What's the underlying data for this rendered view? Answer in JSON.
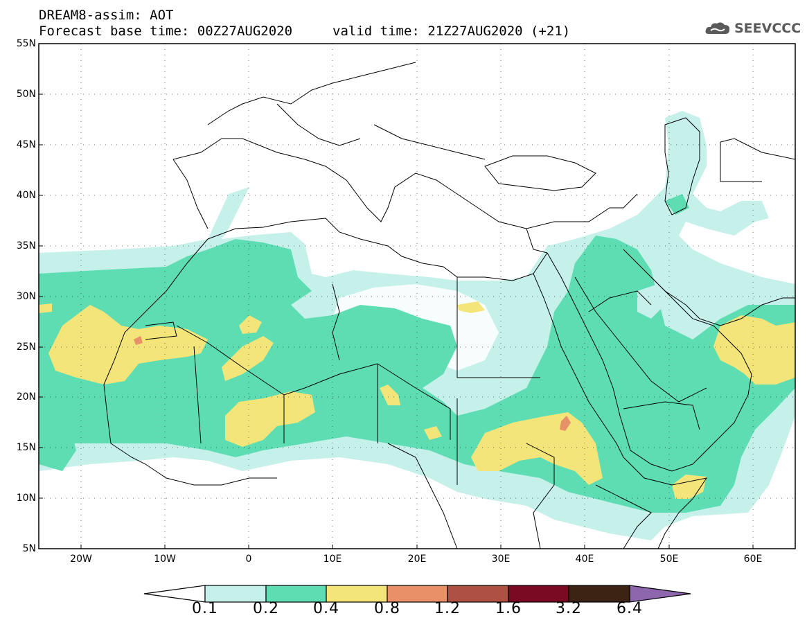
{
  "header": {
    "line1": "DREAM8-assim: AOT",
    "forecast_base": "Forecast base time: 00Z27AUG2020",
    "valid_time": "valid time: 21Z27AUG2020 (+21)"
  },
  "logo": {
    "text": "SEEVCCC",
    "icon": "cloud-icon"
  },
  "map": {
    "extent": {
      "lon_min": -25,
      "lon_max": 65,
      "lat_min": 5,
      "lat_max": 55
    },
    "lat_labels": [
      "55N",
      "50N",
      "45N",
      "40N",
      "35N",
      "30N",
      "25N",
      "20N",
      "15N",
      "10N",
      "5N"
    ],
    "lon_labels": [
      "20W",
      "10W",
      "0",
      "10E",
      "20E",
      "30E",
      "40E",
      "50E",
      "60E"
    ]
  },
  "colorbar": {
    "levels": [
      "0.1",
      "0.2",
      "0.4",
      "0.8",
      "1.2",
      "1.6",
      "3.2",
      "6.4"
    ],
    "colors": [
      "#ffffff",
      "#c6f1ea",
      "#5fddb2",
      "#f3e57a",
      "#e89068",
      "#ad5242",
      "#7a0a23",
      "#3b2414",
      "#8e66ad"
    ]
  }
}
